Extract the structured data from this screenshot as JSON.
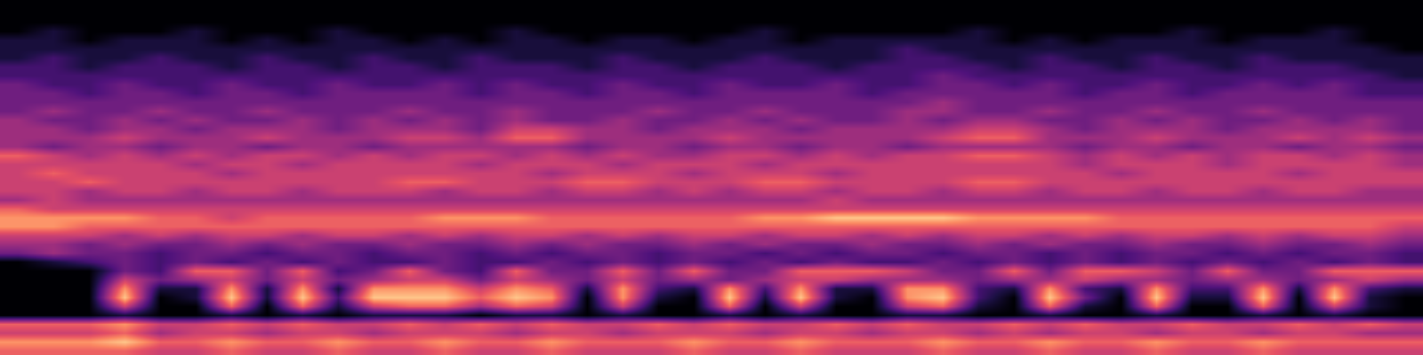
{
  "chart_data": {
    "type": "heatmap",
    "zlim": [
      0,
      9
    ],
    "tick_labels": false,
    "cells": [
      [
        0,
        0,
        0,
        0,
        0,
        0,
        0,
        0,
        0,
        0,
        0,
        0,
        0,
        0,
        0,
        0,
        0,
        0,
        0,
        0,
        0,
        0,
        0,
        0,
        0,
        0,
        0,
        0,
        0,
        0,
        0,
        0,
        0,
        0,
        0,
        0,
        0,
        0,
        0,
        0
      ],
      [
        0,
        0,
        0,
        0,
        0,
        0,
        0,
        0,
        0,
        0,
        0,
        0,
        0,
        0,
        0,
        0,
        0,
        0,
        0,
        0,
        0,
        0,
        0,
        0,
        0,
        0,
        0,
        0,
        0,
        0,
        0,
        0,
        0,
        0,
        0,
        0,
        0,
        0,
        0,
        0
      ],
      [
        0,
        0,
        0,
        0,
        0,
        0,
        0,
        0,
        0,
        0,
        0,
        0,
        0,
        0,
        0,
        0,
        0,
        0,
        0,
        0,
        0,
        0,
        0,
        0,
        0,
        0,
        0,
        0,
        0,
        0,
        0,
        0,
        0,
        0,
        0,
        0,
        0,
        0,
        0,
        0
      ],
      [
        0,
        1,
        0,
        0,
        0,
        1,
        0,
        0,
        0,
        1,
        0,
        0,
        0,
        0,
        1,
        0,
        0,
        0,
        0,
        0,
        0,
        1,
        0,
        0,
        0,
        0,
        0,
        1,
        0,
        0,
        0,
        0,
        0,
        1,
        0,
        0,
        0,
        1,
        0,
        0
      ],
      [
        1,
        1,
        0,
        1,
        1,
        1,
        0,
        1,
        0,
        1,
        1,
        0,
        1,
        0,
        1,
        1,
        0,
        1,
        1,
        0,
        1,
        1,
        0,
        1,
        1,
        1,
        1,
        1,
        0,
        1,
        0,
        1,
        1,
        1,
        0,
        1,
        1,
        1,
        0,
        0
      ],
      [
        1,
        1,
        1,
        1,
        1,
        1,
        1,
        1,
        1,
        1,
        1,
        1,
        1,
        1,
        1,
        1,
        1,
        1,
        1,
        1,
        1,
        1,
        1,
        1,
        1,
        2,
        1,
        1,
        1,
        1,
        1,
        1,
        1,
        1,
        1,
        1,
        1,
        1,
        1,
        0
      ],
      [
        1,
        2,
        1,
        1,
        2,
        1,
        1,
        2,
        1,
        1,
        2,
        1,
        1,
        2,
        1,
        1,
        1,
        2,
        1,
        1,
        1,
        2,
        1,
        1,
        1,
        2,
        2,
        1,
        1,
        2,
        1,
        1,
        2,
        1,
        1,
        2,
        1,
        1,
        1,
        1
      ],
      [
        2,
        2,
        1,
        2,
        2,
        2,
        1,
        2,
        2,
        1,
        2,
        2,
        1,
        2,
        2,
        2,
        1,
        2,
        2,
        1,
        2,
        2,
        2,
        1,
        2,
        2,
        2,
        2,
        1,
        2,
        2,
        1,
        2,
        2,
        1,
        2,
        2,
        2,
        1,
        1
      ],
      [
        2,
        2,
        2,
        2,
        2,
        2,
        2,
        2,
        2,
        2,
        2,
        2,
        2,
        2,
        2,
        2,
        2,
        2,
        2,
        2,
        2,
        2,
        2,
        2,
        2,
        2,
        3,
        2,
        2,
        2,
        2,
        2,
        2,
        2,
        2,
        2,
        2,
        2,
        2,
        1
      ],
      [
        3,
        2,
        2,
        3,
        2,
        2,
        3,
        2,
        2,
        3,
        2,
        2,
        3,
        2,
        3,
        2,
        2,
        3,
        2,
        2,
        3,
        2,
        2,
        3,
        2,
        2,
        3,
        3,
        2,
        3,
        2,
        2,
        3,
        2,
        2,
        3,
        2,
        3,
        2,
        2
      ],
      [
        3,
        3,
        2,
        3,
        3,
        2,
        3,
        3,
        2,
        3,
        3,
        3,
        3,
        2,
        3,
        3,
        2,
        3,
        3,
        2,
        3,
        3,
        3,
        3,
        2,
        3,
        3,
        3,
        3,
        3,
        2,
        3,
        3,
        2,
        3,
        3,
        3,
        3,
        2,
        2
      ],
      [
        3,
        3,
        3,
        3,
        3,
        3,
        3,
        3,
        3,
        3,
        3,
        3,
        3,
        3,
        3,
        3,
        3,
        3,
        3,
        3,
        3,
        3,
        3,
        3,
        3,
        3,
        4,
        3,
        3,
        3,
        3,
        3,
        3,
        3,
        3,
        3,
        3,
        3,
        3,
        3
      ],
      [
        3,
        4,
        3,
        3,
        4,
        3,
        3,
        4,
        3,
        3,
        3,
        4,
        3,
        3,
        4,
        3,
        3,
        3,
        4,
        3,
        3,
        4,
        3,
        3,
        3,
        4,
        4,
        3,
        3,
        4,
        3,
        3,
        4,
        3,
        3,
        4,
        3,
        3,
        3,
        3
      ],
      [
        4,
        3,
        3,
        4,
        3,
        4,
        3,
        3,
        4,
        3,
        4,
        3,
        4,
        3,
        4,
        3,
        3,
        4,
        3,
        3,
        4,
        3,
        4,
        3,
        3,
        4,
        3,
        4,
        4,
        3,
        3,
        4,
        3,
        4,
        3,
        3,
        4,
        3,
        4,
        3
      ],
      [
        4,
        4,
        3,
        4,
        4,
        3,
        4,
        4,
        4,
        3,
        4,
        4,
        4,
        3,
        5,
        5,
        4,
        4,
        3,
        4,
        4,
        4,
        3,
        4,
        4,
        4,
        4,
        5,
        5,
        4,
        3,
        4,
        4,
        4,
        3,
        4,
        4,
        4,
        4,
        3
      ],
      [
        4,
        4,
        4,
        5,
        4,
        4,
        4,
        5,
        4,
        4,
        4,
        5,
        5,
        4,
        6,
        6,
        4,
        4,
        4,
        4,
        5,
        4,
        4,
        4,
        4,
        4,
        5,
        6,
        6,
        4,
        4,
        4,
        5,
        4,
        4,
        4,
        5,
        4,
        5,
        4
      ],
      [
        4,
        3,
        4,
        4,
        3,
        4,
        4,
        3,
        4,
        4,
        3,
        4,
        4,
        4,
        4,
        4,
        3,
        4,
        4,
        3,
        4,
        4,
        3,
        4,
        4,
        3,
        4,
        4,
        4,
        4,
        3,
        4,
        4,
        3,
        4,
        4,
        3,
        4,
        4,
        3
      ],
      [
        6,
        5,
        4,
        5,
        4,
        5,
        4,
        5,
        5,
        4,
        5,
        4,
        5,
        5,
        4,
        5,
        4,
        5,
        4,
        4,
        5,
        5,
        4,
        5,
        4,
        5,
        5,
        6,
        6,
        5,
        4,
        5,
        4,
        5,
        4,
        5,
        5,
        4,
        5,
        4
      ],
      [
        5,
        5,
        5,
        5,
        5,
        4,
        5,
        5,
        4,
        5,
        5,
        5,
        5,
        4,
        5,
        5,
        5,
        4,
        5,
        5,
        5,
        4,
        5,
        5,
        5,
        5,
        5,
        5,
        5,
        5,
        4,
        5,
        5,
        5,
        4,
        5,
        5,
        5,
        5,
        4
      ],
      [
        5,
        6,
        5,
        5,
        5,
        5,
        4,
        5,
        5,
        5,
        5,
        5,
        5,
        5,
        5,
        4,
        5,
        5,
        5,
        4,
        5,
        5,
        5,
        4,
        5,
        5,
        5,
        5,
        5,
        5,
        5,
        4,
        5,
        5,
        5,
        5,
        4,
        5,
        5,
        5
      ],
      [
        5,
        5,
        6,
        5,
        5,
        5,
        5,
        5,
        5,
        5,
        5,
        6,
        6,
        5,
        5,
        5,
        6,
        6,
        5,
        5,
        5,
        6,
        6,
        5,
        5,
        5,
        5,
        6,
        6,
        5,
        5,
        5,
        5,
        5,
        5,
        5,
        5,
        5,
        5,
        5
      ],
      [
        5,
        5,
        4,
        5,
        5,
        4,
        5,
        5,
        4,
        5,
        5,
        5,
        4,
        5,
        5,
        4,
        5,
        5,
        4,
        5,
        4,
        5,
        5,
        4,
        5,
        5,
        4,
        5,
        5,
        4,
        5,
        5,
        4,
        5,
        5,
        4,
        5,
        5,
        4,
        4
      ],
      [
        4,
        5,
        4,
        4,
        4,
        4,
        4,
        4,
        4,
        4,
        4,
        4,
        4,
        4,
        4,
        4,
        4,
        4,
        4,
        4,
        4,
        4,
        4,
        5,
        4,
        4,
        4,
        4,
        4,
        4,
        4,
        4,
        4,
        4,
        4,
        4,
        4,
        4,
        4,
        4
      ],
      [
        6,
        5,
        5,
        5,
        5,
        5,
        5,
        5,
        5,
        5,
        5,
        5,
        5,
        5,
        5,
        5,
        5,
        5,
        5,
        5,
        5,
        5,
        5,
        5,
        5,
        5,
        5,
        5,
        5,
        5,
        5,
        5,
        5,
        5,
        5,
        5,
        5,
        5,
        5,
        5
      ],
      [
        7,
        7,
        7,
        7,
        6,
        6,
        5,
        6,
        6,
        6,
        6,
        6,
        7,
        7,
        7,
        6,
        6,
        6,
        6,
        6,
        6,
        7,
        7,
        8,
        8,
        8,
        8,
        7,
        7,
        7,
        7,
        6,
        6,
        6,
        6,
        6,
        6,
        6,
        6,
        6
      ],
      [
        7,
        7,
        6,
        6,
        6,
        6,
        6,
        6,
        6,
        6,
        6,
        6,
        6,
        6,
        6,
        6,
        6,
        6,
        6,
        6,
        6,
        6,
        6,
        6,
        6,
        6,
        6,
        6,
        6,
        6,
        6,
        6,
        6,
        6,
        6,
        6,
        6,
        6,
        6,
        5
      ],
      [
        5,
        5,
        5,
        4,
        5,
        4,
        5,
        5,
        4,
        5,
        5,
        4,
        5,
        4,
        5,
        5,
        4,
        5,
        4,
        5,
        5,
        4,
        5,
        5,
        4,
        5,
        4,
        5,
        5,
        4,
        5,
        4,
        5,
        5,
        4,
        5,
        4,
        5,
        5,
        4
      ],
      [
        4,
        4,
        3,
        4,
        3,
        3,
        4,
        3,
        4,
        3,
        3,
        4,
        3,
        3,
        4,
        3,
        4,
        3,
        3,
        4,
        3,
        4,
        3,
        3,
        4,
        3,
        3,
        4,
        3,
        4,
        3,
        3,
        4,
        3,
        3,
        4,
        3,
        3,
        4,
        3
      ],
      [
        3,
        4,
        3,
        3,
        2,
        3,
        3,
        2,
        3,
        3,
        2,
        3,
        3,
        2,
        3,
        2,
        3,
        3,
        2,
        3,
        3,
        2,
        3,
        2,
        3,
        3,
        2,
        3,
        3,
        2,
        3,
        2,
        3,
        3,
        2,
        3,
        2,
        3,
        3,
        2
      ],
      [
        0,
        1,
        2,
        3,
        2,
        3,
        2,
        3,
        2,
        3,
        2,
        2,
        3,
        2,
        2,
        3,
        2,
        3,
        2,
        3,
        2,
        3,
        2,
        3,
        2,
        2,
        3,
        2,
        3,
        2,
        3,
        2,
        3,
        2,
        3,
        2,
        3,
        2,
        3,
        2
      ],
      [
        0,
        0,
        0,
        3,
        2,
        6,
        6,
        3,
        6,
        2,
        3,
        6,
        3,
        2,
        6,
        3,
        3,
        6,
        3,
        6,
        3,
        3,
        6,
        6,
        6,
        5,
        3,
        3,
        6,
        3,
        6,
        6,
        5,
        3,
        6,
        3,
        3,
        6,
        6,
        6
      ],
      [
        0,
        0,
        0,
        5,
        3,
        4,
        5,
        3,
        5,
        3,
        4,
        5,
        5,
        3,
        5,
        4,
        3,
        5,
        3,
        4,
        3,
        4,
        5,
        5,
        4,
        4,
        4,
        3,
        4,
        4,
        5,
        4,
        4,
        3,
        4,
        4,
        3,
        4,
        5,
        4
      ],
      [
        0,
        0,
        0,
        7,
        1,
        1,
        7,
        1,
        7,
        1,
        7,
        7,
        7,
        5,
        7,
        6,
        1,
        7,
        2,
        1,
        7,
        2,
        7,
        1,
        1,
        7,
        7,
        2,
        1,
        7,
        2,
        1,
        7,
        2,
        2,
        7,
        1,
        7,
        2,
        1
      ],
      [
        0,
        0,
        0,
        8,
        0,
        1,
        8,
        1,
        8,
        2,
        8,
        8,
        8,
        6,
        8,
        7,
        0,
        7,
        1,
        0,
        8,
        1,
        8,
        1,
        0,
        7,
        8,
        2,
        0,
        8,
        3,
        0,
        8,
        1,
        1,
        8,
        0,
        8,
        1,
        0
      ],
      [
        0,
        0,
        0,
        5,
        0,
        0,
        6,
        0,
        6,
        1,
        5,
        6,
        6,
        4,
        6,
        5,
        0,
        5,
        0,
        0,
        6,
        0,
        5,
        0,
        0,
        5,
        6,
        1,
        0,
        6,
        1,
        0,
        6,
        0,
        0,
        6,
        0,
        5,
        1,
        0
      ],
      [
        0,
        0,
        0,
        1,
        0,
        0,
        1,
        0,
        1,
        0,
        1,
        1,
        1,
        0,
        1,
        1,
        0,
        1,
        0,
        0,
        1,
        0,
        1,
        0,
        0,
        1,
        1,
        0,
        0,
        1,
        0,
        0,
        1,
        0,
        0,
        1,
        0,
        1,
        0,
        0
      ],
      [
        6,
        6,
        6,
        7,
        5,
        5,
        6,
        5,
        6,
        5,
        5,
        6,
        5,
        6,
        5,
        6,
        5,
        5,
        6,
        5,
        6,
        5,
        5,
        6,
        5,
        6,
        5,
        5,
        6,
        5,
        6,
        5,
        5,
        6,
        5,
        5,
        6,
        5,
        6,
        5
      ],
      [
        5,
        5,
        5,
        6,
        4,
        5,
        5,
        4,
        5,
        5,
        4,
        5,
        5,
        5,
        4,
        5,
        5,
        4,
        5,
        5,
        5,
        4,
        5,
        5,
        4,
        5,
        5,
        4,
        5,
        4,
        5,
        5,
        4,
        5,
        5,
        4,
        5,
        5,
        4,
        4
      ],
      [
        7,
        7,
        7,
        8,
        6,
        6,
        7,
        6,
        6,
        7,
        6,
        6,
        7,
        6,
        6,
        7,
        6,
        6,
        6,
        7,
        6,
        6,
        7,
        6,
        6,
        6,
        7,
        6,
        6,
        7,
        6,
        6,
        7,
        6,
        6,
        7,
        6,
        6,
        6,
        6
      ],
      [
        6,
        6,
        6,
        6,
        5,
        5,
        6,
        5,
        5,
        6,
        5,
        5,
        6,
        5,
        5,
        6,
        5,
        5,
        5,
        6,
        5,
        5,
        6,
        5,
        5,
        5,
        6,
        5,
        5,
        6,
        5,
        5,
        6,
        5,
        5,
        6,
        5,
        5,
        5,
        5
      ]
    ]
  }
}
